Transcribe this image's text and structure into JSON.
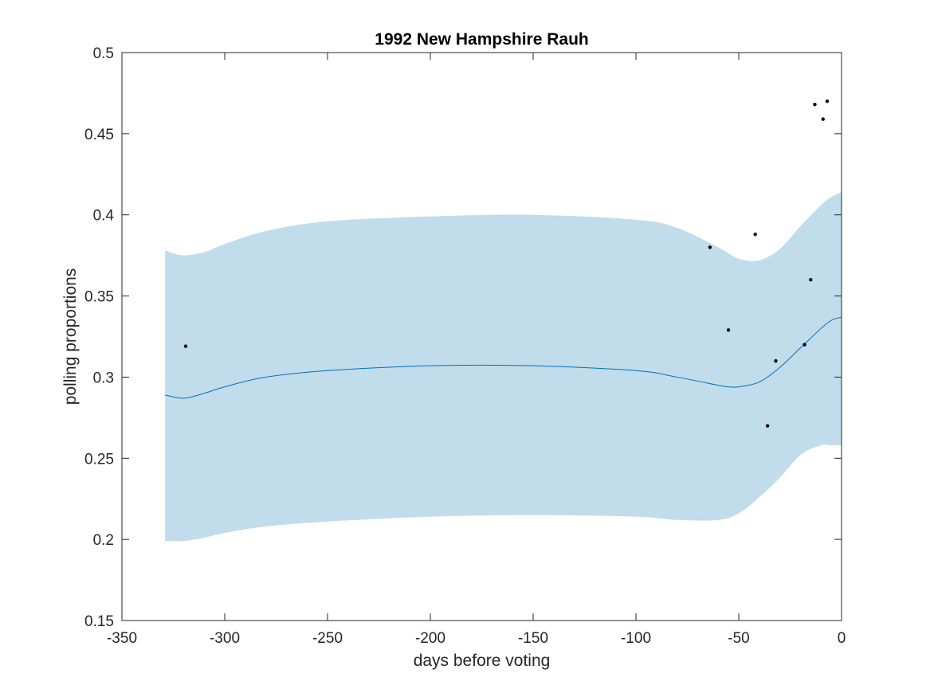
{
  "chart_data": {
    "type": "line",
    "title": "1992 New Hampshire Rauh",
    "xlabel": "days before voting",
    "ylabel": "polling proportions",
    "xlim": [
      -350,
      0
    ],
    "ylim": [
      0.15,
      0.5
    ],
    "xticks": [
      -350,
      -300,
      -250,
      -200,
      -150,
      -100,
      -50,
      0
    ],
    "xtick_labels": [
      "-350",
      "-300",
      "-250",
      "-200",
      "-150",
      "-100",
      "-50",
      "0"
    ],
    "yticks": [
      0.15,
      0.2,
      0.25,
      0.3,
      0.35,
      0.4,
      0.45,
      0.5
    ],
    "ytick_labels": [
      "0.15",
      "0.2",
      "0.25",
      "0.3",
      "0.35",
      "0.4",
      "0.45",
      "0.5"
    ],
    "grid": false,
    "legend": "none",
    "colors": {
      "band": "#c1dcea",
      "line": "#0072bd",
      "points": "#000000",
      "axes": "#262626"
    },
    "series": [
      {
        "type": "area-band",
        "x": [
          -329,
          -320,
          -310,
          -300,
          -280,
          -250,
          -200,
          -150,
          -100,
          -80,
          -60,
          -50,
          -40,
          -30,
          -20,
          -10,
          -5,
          0
        ],
        "upper": [
          0.378,
          0.375,
          0.377,
          0.382,
          0.39,
          0.396,
          0.399,
          0.4,
          0.397,
          0.392,
          0.38,
          0.373,
          0.372,
          0.379,
          0.393,
          0.406,
          0.411,
          0.414
        ],
        "lower": [
          0.199,
          0.199,
          0.201,
          0.204,
          0.208,
          0.211,
          0.214,
          0.215,
          0.214,
          0.212,
          0.212,
          0.216,
          0.226,
          0.238,
          0.252,
          0.258,
          0.258,
          0.258
        ]
      },
      {
        "type": "line",
        "x": [
          -329,
          -320,
          -310,
          -300,
          -280,
          -250,
          -200,
          -150,
          -100,
          -80,
          -60,
          -55,
          -50,
          -40,
          -30,
          -20,
          -10,
          -5,
          0
        ],
        "y": [
          0.289,
          0.287,
          0.29,
          0.294,
          0.3,
          0.304,
          0.307,
          0.307,
          0.304,
          0.3,
          0.295,
          0.294,
          0.294,
          0.297,
          0.306,
          0.318,
          0.33,
          0.335,
          0.337
        ]
      },
      {
        "type": "scatter",
        "x": [
          -319,
          -64,
          -55,
          -42,
          -36,
          -32,
          -18,
          -15,
          -13,
          -9,
          -7
        ],
        "y": [
          0.319,
          0.38,
          0.329,
          0.388,
          0.27,
          0.31,
          0.32,
          0.36,
          0.468,
          0.459,
          0.47
        ]
      }
    ]
  }
}
